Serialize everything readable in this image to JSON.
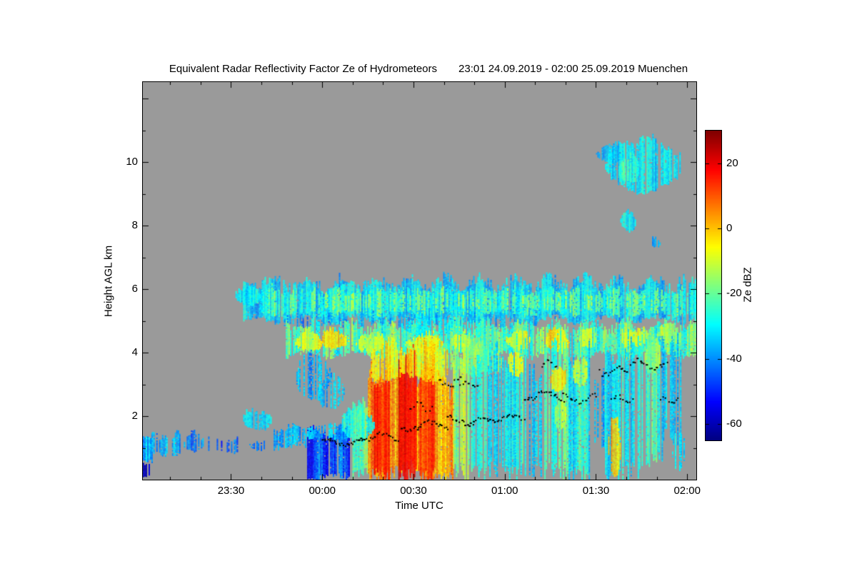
{
  "chart_data": {
    "type": "heatmap",
    "title": "Equivalent Radar Reflectivity Factor Ze of Hydrometeors",
    "period": "23:01 24.09.2019 - 02:00 25.09.2019 Muenchen",
    "xlabel": "Time UTC",
    "ylabel": "Height AGL km",
    "colormap": "jet",
    "grid": false,
    "colors": {
      "plot_background": "#9a9a9a",
      "frame": "#000000",
      "text": "#000000",
      "page": "#ffffff"
    },
    "x_axis": {
      "range_minutes": [
        0,
        182
      ],
      "start_label": "23:01",
      "ticks": [
        {
          "minute": 29,
          "label": "23:30"
        },
        {
          "minute": 59,
          "label": "00:00"
        },
        {
          "minute": 89,
          "label": "00:30"
        },
        {
          "minute": 119,
          "label": "01:00"
        },
        {
          "minute": 149,
          "label": "01:30"
        },
        {
          "minute": 179,
          "label": "02:00"
        }
      ]
    },
    "y_axis": {
      "range_km": [
        0,
        12.52
      ],
      "ticks": [
        {
          "km": 2,
          "label": "2"
        },
        {
          "km": 4,
          "label": "4"
        },
        {
          "km": 6,
          "label": "6"
        },
        {
          "km": 8,
          "label": "8"
        },
        {
          "km": 10,
          "label": "10"
        }
      ]
    },
    "colorbar": {
      "label": "Ze dBZ",
      "range_dbz": [
        -65,
        30
      ],
      "ticks": [
        {
          "dbz": 20,
          "label": "20"
        },
        {
          "dbz": 0,
          "label": "0"
        },
        {
          "dbz": -20,
          "label": "-20"
        },
        {
          "dbz": -40,
          "label": "-40"
        },
        {
          "dbz": -60,
          "label": "-60"
        }
      ]
    },
    "features_format": "kind layer|blob|column, t:[start_min,end_min] after 23:01, h:[base_km,top_km], dbz mean reflectivity, var dBZ spread, density fill fraction, edge raggedness km",
    "features": [
      {
        "kind": "layer",
        "t": [
          33,
          182
        ],
        "h": [
          5.05,
          6.2
        ],
        "dbz": -33,
        "var": 7,
        "density": 0.97,
        "edge": 0.3
      },
      {
        "kind": "layer",
        "t": [
          38,
          182
        ],
        "h": [
          5.25,
          5.95
        ],
        "dbz": -24,
        "var": 9,
        "density": 0.7,
        "edge": 0.2
      },
      {
        "kind": "layer",
        "t": [
          60,
          172
        ],
        "h": [
          5.4,
          5.85
        ],
        "dbz": -17,
        "var": 8,
        "density": 0.35,
        "edge": 0.15
      },
      {
        "kind": "blob",
        "t": [
          30,
          38
        ],
        "h": [
          5.5,
          6.1
        ],
        "dbz": -30,
        "var": 6,
        "density": 1,
        "edge": 0.15
      },
      {
        "kind": "layer",
        "t": [
          45,
          130
        ],
        "h": [
          4.85,
          5.15
        ],
        "dbz": -38,
        "var": 6,
        "density": 0.45,
        "edge": 0.2
      },
      {
        "kind": "layer",
        "t": [
          47,
          182
        ],
        "h": [
          3.95,
          4.85
        ],
        "dbz": -22,
        "var": 9,
        "density": 0.93,
        "edge": 0.25
      },
      {
        "kind": "blob",
        "t": [
          50,
          59
        ],
        "h": [
          4.05,
          4.65
        ],
        "dbz": -8,
        "var": 6,
        "density": 0.95,
        "edge": 0.15
      },
      {
        "kind": "blob",
        "t": [
          59,
          68
        ],
        "h": [
          4.15,
          4.7
        ],
        "dbz": -2,
        "var": 5,
        "density": 0.95,
        "edge": 0.15
      },
      {
        "kind": "blob",
        "t": [
          70,
          79
        ],
        "h": [
          4.0,
          4.6
        ],
        "dbz": -10,
        "var": 6,
        "density": 0.9,
        "edge": 0.15
      },
      {
        "kind": "blob",
        "t": [
          86,
          99
        ],
        "h": [
          3.95,
          4.55
        ],
        "dbz": -6,
        "var": 6,
        "density": 0.95,
        "edge": 0.15
      },
      {
        "kind": "blob",
        "t": [
          101,
          108
        ],
        "h": [
          4.1,
          4.6
        ],
        "dbz": -12,
        "var": 5,
        "density": 0.9,
        "edge": 0.15
      },
      {
        "kind": "blob",
        "t": [
          119,
          127
        ],
        "h": [
          4.15,
          4.7
        ],
        "dbz": -7,
        "var": 5,
        "density": 0.9,
        "edge": 0.15
      },
      {
        "kind": "blob",
        "t": [
          132,
          140
        ],
        "h": [
          4.05,
          4.7
        ],
        "dbz": -3,
        "var": 5,
        "density": 0.95,
        "edge": 0.15
      },
      {
        "kind": "blob",
        "t": [
          143,
          149
        ],
        "h": [
          4.2,
          4.75
        ],
        "dbz": -12,
        "var": 5,
        "density": 0.9,
        "edge": 0.15
      },
      {
        "kind": "blob",
        "t": [
          157,
          166
        ],
        "h": [
          4.2,
          4.8
        ],
        "dbz": -8,
        "var": 5,
        "density": 0.9,
        "edge": 0.15
      },
      {
        "kind": "blob",
        "t": [
          169,
          177
        ],
        "h": [
          4.3,
          4.85
        ],
        "dbz": -14,
        "var": 5,
        "density": 0.85,
        "edge": 0.15
      },
      {
        "kind": "layer",
        "t": [
          80,
          118
        ],
        "h": [
          3.4,
          4.1
        ],
        "dbz": -18,
        "var": 8,
        "density": 0.85,
        "edge": 0.3
      },
      {
        "kind": "layer",
        "t": [
          85,
          112
        ],
        "h": [
          4.6,
          5.1
        ],
        "dbz": -28,
        "var": 6,
        "density": 0.6,
        "edge": 0.2
      },
      {
        "kind": "column",
        "t": [
          68,
          74
        ],
        "h": [
          0.1,
          2.4
        ],
        "dbz": -20,
        "var": 9,
        "density": 0.9,
        "edge": 0.3
      },
      {
        "kind": "column",
        "t": [
          74,
          97
        ],
        "h": [
          0.1,
          3.5
        ],
        "dbz": 6,
        "var": 9,
        "density": 1,
        "edge": 0.4
      },
      {
        "kind": "column",
        "t": [
          76,
          81
        ],
        "h": [
          0.1,
          3.2
        ],
        "dbz": 16,
        "var": 5,
        "density": 1,
        "edge": 0.3
      },
      {
        "kind": "column",
        "t": [
          84,
          90
        ],
        "h": [
          0.1,
          3.85
        ],
        "dbz": 19,
        "var": 5,
        "density": 1,
        "edge": 0.3
      },
      {
        "kind": "column",
        "t": [
          91,
          96
        ],
        "h": [
          0.1,
          3.4
        ],
        "dbz": 14,
        "var": 6,
        "density": 1,
        "edge": 0.3
      },
      {
        "kind": "layer",
        "t": [
          75,
          100
        ],
        "h": [
          3.2,
          4.2
        ],
        "dbz": -4,
        "var": 7,
        "density": 0.9,
        "edge": 0.3
      },
      {
        "kind": "column",
        "t": [
          97,
          102
        ],
        "h": [
          0.1,
          3.1
        ],
        "dbz": 2,
        "var": 7,
        "density": 0.95,
        "edge": 0.3
      },
      {
        "kind": "column",
        "t": [
          102,
          107
        ],
        "h": [
          0.1,
          4.3
        ],
        "dbz": -14,
        "var": 8,
        "density": 0.9,
        "edge": 0.3
      },
      {
        "kind": "column",
        "t": [
          107,
          113
        ],
        "h": [
          0.1,
          4.3
        ],
        "dbz": -26,
        "var": 7,
        "density": 0.85,
        "edge": 0.3
      },
      {
        "kind": "column",
        "t": [
          113,
          119
        ],
        "h": [
          0.1,
          4.0
        ],
        "dbz": -30,
        "var": 7,
        "density": 0.75,
        "edge": 0.3
      },
      {
        "kind": "column",
        "t": [
          54,
          68
        ],
        "h": [
          0.05,
          1.55
        ],
        "dbz": -47,
        "var": 8,
        "density": 0.95,
        "edge": 0.15
      },
      {
        "kind": "layer",
        "t": [
          54,
          68
        ],
        "h": [
          1.3,
          1.7
        ],
        "dbz": -36,
        "var": 6,
        "density": 0.8,
        "edge": 0.15
      },
      {
        "kind": "layer",
        "t": [
          0,
          3
        ],
        "h": [
          0.55,
          1.5
        ],
        "dbz": -38,
        "var": 8,
        "density": 1,
        "edge": 0.2
      },
      {
        "kind": "layer",
        "t": [
          0,
          2
        ],
        "h": [
          0.15,
          0.5
        ],
        "dbz": -55,
        "var": 5,
        "density": 0.9,
        "edge": 0.1
      },
      {
        "kind": "layer",
        "t": [
          3,
          12
        ],
        "h": [
          0.85,
          1.4
        ],
        "dbz": -36,
        "var": 7,
        "density": 0.8,
        "edge": 0.2
      },
      {
        "kind": "blob",
        "t": [
          13,
          20
        ],
        "h": [
          0.95,
          1.4
        ],
        "dbz": -40,
        "var": 6,
        "density": 0.75,
        "edge": 0.15
      },
      {
        "kind": "layer",
        "t": [
          21,
          31
        ],
        "h": [
          0.9,
          1.3
        ],
        "dbz": -45,
        "var": 6,
        "density": 0.45,
        "edge": 0.15
      },
      {
        "kind": "blob",
        "t": [
          33,
          42
        ],
        "h": [
          1.55,
          2.2
        ],
        "dbz": -34,
        "var": 6,
        "density": 0.95,
        "edge": 0.15
      },
      {
        "kind": "blob",
        "t": [
          35,
          40
        ],
        "h": [
          0.95,
          1.25
        ],
        "dbz": -42,
        "var": 5,
        "density": 0.7,
        "edge": 0.1
      },
      {
        "kind": "layer",
        "t": [
          43,
          54
        ],
        "h": [
          1.05,
          1.6
        ],
        "dbz": -36,
        "var": 7,
        "density": 0.75,
        "edge": 0.2
      },
      {
        "kind": "blob",
        "t": [
          65,
          76
        ],
        "h": [
          1.3,
          2.2
        ],
        "dbz": -26,
        "var": 7,
        "density": 0.9,
        "edge": 0.2
      },
      {
        "kind": "blob",
        "t": [
          57,
          66
        ],
        "h": [
          2.3,
          3.2
        ],
        "dbz": -34,
        "var": 6,
        "density": 0.65,
        "edge": 0.2
      },
      {
        "kind": "blob",
        "t": [
          50,
          62
        ],
        "h": [
          2.6,
          3.9
        ],
        "dbz": -36,
        "var": 6,
        "density": 0.55,
        "edge": 0.25
      },
      {
        "kind": "column",
        "t": [
          119,
          126
        ],
        "h": [
          0.1,
          4.2
        ],
        "dbz": -28,
        "var": 8,
        "density": 0.9,
        "edge": 0.3
      },
      {
        "kind": "blob",
        "t": [
          120,
          125
        ],
        "h": [
          3.3,
          4.0
        ],
        "dbz": -8,
        "var": 5,
        "density": 0.9,
        "edge": 0.15
      },
      {
        "kind": "column",
        "t": [
          127,
          131
        ],
        "h": [
          0.1,
          3.6
        ],
        "dbz": -34,
        "var": 7,
        "density": 0.55,
        "edge": 0.3
      },
      {
        "kind": "column",
        "t": [
          132,
          140
        ],
        "h": [
          0.1,
          4.3
        ],
        "dbz": -24,
        "var": 8,
        "density": 0.9,
        "edge": 0.3
      },
      {
        "kind": "blob",
        "t": [
          134,
          139
        ],
        "h": [
          2.8,
          3.6
        ],
        "dbz": -2,
        "var": 5,
        "density": 0.9,
        "edge": 0.15
      },
      {
        "kind": "blob",
        "t": [
          135,
          139
        ],
        "h": [
          1.6,
          2.5
        ],
        "dbz": -12,
        "var": 6,
        "density": 0.85,
        "edge": 0.15
      },
      {
        "kind": "column",
        "t": [
          140,
          147
        ],
        "h": [
          0.1,
          4.0
        ],
        "dbz": -28,
        "var": 8,
        "density": 0.85,
        "edge": 0.3
      },
      {
        "kind": "blob",
        "t": [
          141,
          146
        ],
        "h": [
          3.0,
          3.9
        ],
        "dbz": -10,
        "var": 5,
        "density": 0.85,
        "edge": 0.15
      },
      {
        "kind": "column",
        "t": [
          148,
          152
        ],
        "h": [
          1.0,
          3.5
        ],
        "dbz": -36,
        "var": 6,
        "density": 0.5,
        "edge": 0.3
      },
      {
        "kind": "column",
        "t": [
          152,
          158
        ],
        "h": [
          0.1,
          4.2
        ],
        "dbz": -30,
        "var": 7,
        "density": 0.9,
        "edge": 0.3
      },
      {
        "kind": "blob",
        "t": [
          153,
          157
        ],
        "h": [
          0.15,
          1.9
        ],
        "dbz": 0,
        "var": 6,
        "density": 0.95,
        "edge": 0.2
      },
      {
        "kind": "column",
        "t": [
          158,
          164
        ],
        "h": [
          0.1,
          4.5
        ],
        "dbz": -30,
        "var": 7,
        "density": 0.8,
        "edge": 0.3
      },
      {
        "kind": "column",
        "t": [
          164,
          171
        ],
        "h": [
          0.5,
          4.5
        ],
        "dbz": -26,
        "var": 8,
        "density": 0.85,
        "edge": 0.3
      },
      {
        "kind": "blob",
        "t": [
          165,
          170
        ],
        "h": [
          3.4,
          4.4
        ],
        "dbz": -15,
        "var": 6,
        "density": 0.85,
        "edge": 0.2
      },
      {
        "kind": "column",
        "t": [
          171,
          177
        ],
        "h": [
          1.2,
          4.3
        ],
        "dbz": -33,
        "var": 7,
        "density": 0.7,
        "edge": 0.3
      },
      {
        "kind": "blob",
        "t": [
          174,
          178
        ],
        "h": [
          0.3,
          1.6
        ],
        "dbz": -30,
        "var": 6,
        "density": 0.7,
        "edge": 0.2
      },
      {
        "kind": "blob",
        "t": [
          149,
          158
        ],
        "h": [
          10.0,
          10.5
        ],
        "dbz": -36,
        "var": 5,
        "density": 0.8,
        "edge": 0.12
      },
      {
        "kind": "blob",
        "t": [
          152,
          177
        ],
        "h": [
          9.1,
          10.7
        ],
        "dbz": -31,
        "var": 6,
        "density": 0.9,
        "edge": 0.2
      },
      {
        "kind": "blob",
        "t": [
          156,
          163
        ],
        "h": [
          9.4,
          10.2
        ],
        "dbz": -24,
        "var": 5,
        "density": 0.7,
        "edge": 0.15
      },
      {
        "kind": "blob",
        "t": [
          157,
          162
        ],
        "h": [
          7.85,
          8.45
        ],
        "dbz": -30,
        "var": 5,
        "density": 0.9,
        "edge": 0.12
      },
      {
        "kind": "blob",
        "t": [
          167,
          170
        ],
        "h": [
          7.3,
          7.65
        ],
        "dbz": -37,
        "var": 4,
        "density": 0.7,
        "edge": 0.1
      }
    ],
    "cloud_base_markers": {
      "format": "[t0_min, t1_min, h0_km, h1_km, count] black dot segments",
      "segments": [
        [
          59,
          72,
          1.1,
          1.3,
          26
        ],
        [
          72,
          84,
          1.25,
          1.5,
          18
        ],
        [
          85,
          100,
          1.55,
          1.85,
          26
        ],
        [
          97,
          104,
          2.9,
          3.2,
          10
        ],
        [
          100,
          112,
          1.75,
          2.0,
          20
        ],
        [
          113,
          125,
          1.85,
          2.05,
          22
        ],
        [
          125,
          138,
          2.5,
          2.8,
          22
        ],
        [
          138,
          149,
          2.45,
          2.7,
          16
        ],
        [
          131,
          136,
          3.6,
          3.8,
          7
        ],
        [
          150,
          159,
          3.3,
          3.6,
          14
        ],
        [
          160,
          172,
          3.5,
          3.8,
          16
        ],
        [
          154,
          161,
          2.45,
          2.65,
          10
        ],
        [
          170,
          176,
          2.4,
          2.6,
          8
        ],
        [
          88,
          95,
          2.2,
          2.45,
          8
        ],
        [
          104,
          110,
          2.95,
          3.1,
          7
        ]
      ]
    }
  }
}
